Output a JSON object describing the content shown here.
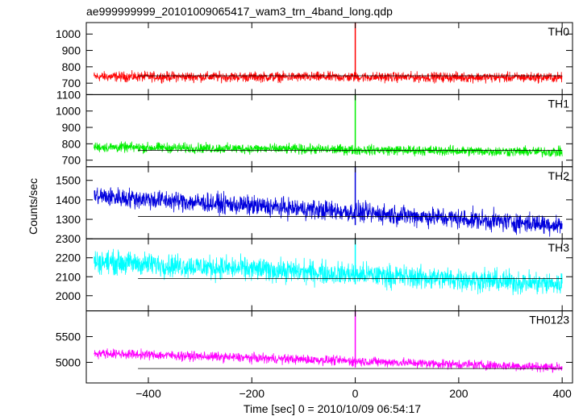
{
  "title": "ae999999999_20101009065417_wam3_trn_4band_long.qdp",
  "ylabel": "Counts/sec",
  "xlabel": "Time [sec] 0 = 2010/10/09 06:54:17",
  "chart_data": {
    "type": "line",
    "title": "ae999999999_20101009065417_wam3_trn_4band_long.qdp",
    "xlabel": "Time [sec] 0 = 2010/10/09 06:54:17",
    "ylabel": "Counts/sec",
    "xlim": [
      -520,
      420
    ],
    "x_ticks": [
      -400,
      -200,
      0,
      200,
      400
    ],
    "x_range_data": [
      -505,
      400
    ],
    "grid": false,
    "panels": [
      {
        "name": "TH0",
        "color": "#ff0000",
        "ylim": [
          630,
          1070
        ],
        "y_ticks": [
          700,
          800,
          900,
          1000
        ],
        "mean_start": 740,
        "mean_end": 735,
        "noise": 30,
        "spike_x": 0,
        "spike_y": 1070,
        "baseline": 745
      },
      {
        "name": "TH1",
        "color": "#00ee00",
        "ylim": [
          660,
          1100
        ],
        "y_ticks": [
          700,
          800,
          900,
          1000,
          1100
        ],
        "mean_start": 780,
        "mean_end": 750,
        "noise": 30,
        "spike_x": 0,
        "spike_y": 1100,
        "baseline": 760
      },
      {
        "name": "TH2",
        "color": "#0000dd",
        "ylim": [
          1200,
          1570
        ],
        "y_ticks": [
          1300,
          1400,
          1500
        ],
        "mean_start": 1420,
        "mean_end": 1270,
        "noise": 50,
        "spike_x": 0,
        "spike_y": 1570,
        "baseline": 1315
      },
      {
        "name": "TH3",
        "color": "#00ffff",
        "ylim": [
          1920,
          2300
        ],
        "y_ticks": [
          2000,
          2100,
          2200,
          2300
        ],
        "mean_start": 2180,
        "mean_end": 2060,
        "noise": 60,
        "spike_x": 0,
        "spike_y": 2300,
        "baseline": 2090
      },
      {
        "name": "TH0123",
        "color": "#ff00ff",
        "ylim": [
          4600,
          6000
        ],
        "y_ticks": [
          5000,
          5500
        ],
        "mean_start": 5180,
        "mean_end": 4900,
        "noise": 90,
        "spike_x": 0,
        "spike_y": 6000,
        "baseline": 4880
      }
    ]
  }
}
